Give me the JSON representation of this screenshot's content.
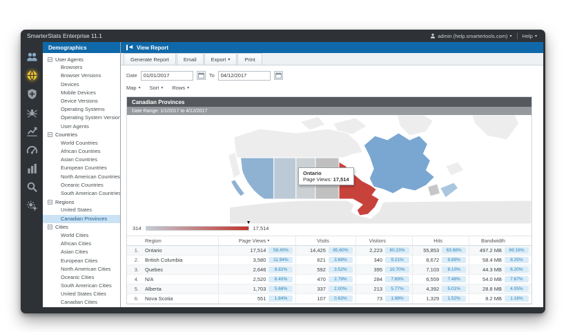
{
  "window": {
    "title": "SmarterStats Enterprise 11.1",
    "user_menu": "admin (help.smartertools.com)",
    "help": "Help"
  },
  "rail": {
    "icons": [
      {
        "name": "users-icon",
        "color": "#86a9c2"
      },
      {
        "name": "globe-icon",
        "active": true,
        "color": "#eabd2e"
      },
      {
        "name": "shield-plus-icon"
      },
      {
        "name": "spider-icon"
      },
      {
        "name": "chart-trend-icon"
      },
      {
        "name": "gauge-icon"
      },
      {
        "name": "bar-chart-icon"
      },
      {
        "name": "search-icon"
      },
      {
        "name": "gears-icon"
      }
    ]
  },
  "sidebar": {
    "title": "Demographics",
    "selected": "Canadian Provinces",
    "groups": [
      {
        "label": "User Agents",
        "items": [
          "Browsers",
          "Browser Versions",
          "Devices",
          "Mobile Devices",
          "Device Versions",
          "Operating Systems",
          "Operating System Versions",
          "User Agents"
        ]
      },
      {
        "label": "Countries",
        "items": [
          "World Countries",
          "African Countries",
          "Asian Countries",
          "European Countries",
          "North American Countries",
          "Oceanic Countries",
          "South American Countries"
        ]
      },
      {
        "label": "Regions",
        "items": [
          "United States",
          "Canadian Provinces"
        ]
      },
      {
        "label": "Cities",
        "items": [
          "World Cities",
          "African Cities",
          "Asian Cities",
          "European Cities",
          "North American Cities",
          "Oceanic Cities",
          "South American Cities",
          "United States Cities",
          "Canadian Cities"
        ]
      }
    ]
  },
  "report": {
    "title": "View Report"
  },
  "toolbar": {
    "items": [
      {
        "label": "Generate Report"
      },
      {
        "label": "Email"
      },
      {
        "label": "Export",
        "caret": true
      },
      {
        "label": "Print"
      }
    ]
  },
  "filters": {
    "date_label": "Date",
    "to_label": "To",
    "start_date": "01/01/2017",
    "end_date": "04/12/2017",
    "dropdowns": [
      "Map",
      "Sort",
      "Rows"
    ]
  },
  "panel": {
    "title": "Canadian Provinces",
    "date_range": "Date Range: 1/1/2017 to 4/12/2017"
  },
  "map": {
    "tooltip": {
      "region": "Ontario",
      "label": "Page Views:",
      "value": "17,514"
    },
    "legend": {
      "min": "314",
      "max": "17,514",
      "start_color": "#c3ccd5",
      "end_color": "#c2342c"
    },
    "region_colors": {
      "british-columbia": "#8fb2d3",
      "alberta": "#bcc9d6",
      "saskatchewan": "#cbd0d4",
      "manitoba": "#c0c0c0",
      "ontario": "#c8423c",
      "quebec": "#7aa6d2",
      "new-brunswick": "#c6c6c6",
      "nova-scotia": "#a9c6e0",
      "newfoundland": "#ededed",
      "north-territories": "#ededed",
      "arctic-islands": "#ededed",
      "greenland": "#ededed",
      "alaska": "#ededed",
      "united-states": "#e9e9e9"
    }
  },
  "table": {
    "columns": [
      "Region",
      "Page Views",
      "Visits",
      "Visitors",
      "Hits",
      "Bandwidth"
    ],
    "sorted_column": "Page Views",
    "rows": [
      {
        "rank": "1.",
        "region": "Ontario",
        "metrics": [
          [
            "17,514",
            "58.40%"
          ],
          [
            "14,425",
            "85.60%"
          ],
          [
            "2,223",
            "60.23%"
          ],
          [
            "55,853",
            "63.68%"
          ],
          [
            "497.2 MB",
            "69.16%"
          ]
        ]
      },
      {
        "rank": "2.",
        "region": "British Columbia",
        "metrics": [
          [
            "3,580",
            "11.94%"
          ],
          [
            "621",
            "3.69%"
          ],
          [
            "340",
            "9.21%"
          ],
          [
            "8,672",
            "9.89%"
          ],
          [
            "58.4 MB",
            "8.25%"
          ]
        ]
      },
      {
        "rank": "3.",
        "region": "Quebec",
        "metrics": [
          [
            "2,646",
            "8.82%"
          ],
          [
            "592",
            "3.52%"
          ],
          [
            "395",
            "10.70%"
          ],
          [
            "7,103",
            "8.10%"
          ],
          [
            "44.3 MB",
            "6.20%"
          ]
        ]
      },
      {
        "rank": "4.",
        "region": "N/A",
        "metrics": [
          [
            "2,520",
            "8.40%"
          ],
          [
            "470",
            "2.79%"
          ],
          [
            "284",
            "7.69%"
          ],
          [
            "6,559",
            "7.48%"
          ],
          [
            "54.0 MB",
            "7.67%"
          ]
        ]
      },
      {
        "rank": "5.",
        "region": "Alberta",
        "metrics": [
          [
            "1,703",
            "5.68%"
          ],
          [
            "337",
            "2.00%"
          ],
          [
            "213",
            "5.77%"
          ],
          [
            "4,392",
            "5.01%"
          ],
          [
            "28.8 MB",
            "4.05%"
          ]
        ]
      },
      {
        "rank": "6.",
        "region": "Nova Scotia",
        "metrics": [
          [
            "551",
            "1.84%"
          ],
          [
            "107",
            "0.63%"
          ],
          [
            "73",
            "1.98%"
          ],
          [
            "1,329",
            "1.52%"
          ],
          [
            "8.2 MB",
            "1.16%"
          ]
        ]
      }
    ]
  }
}
